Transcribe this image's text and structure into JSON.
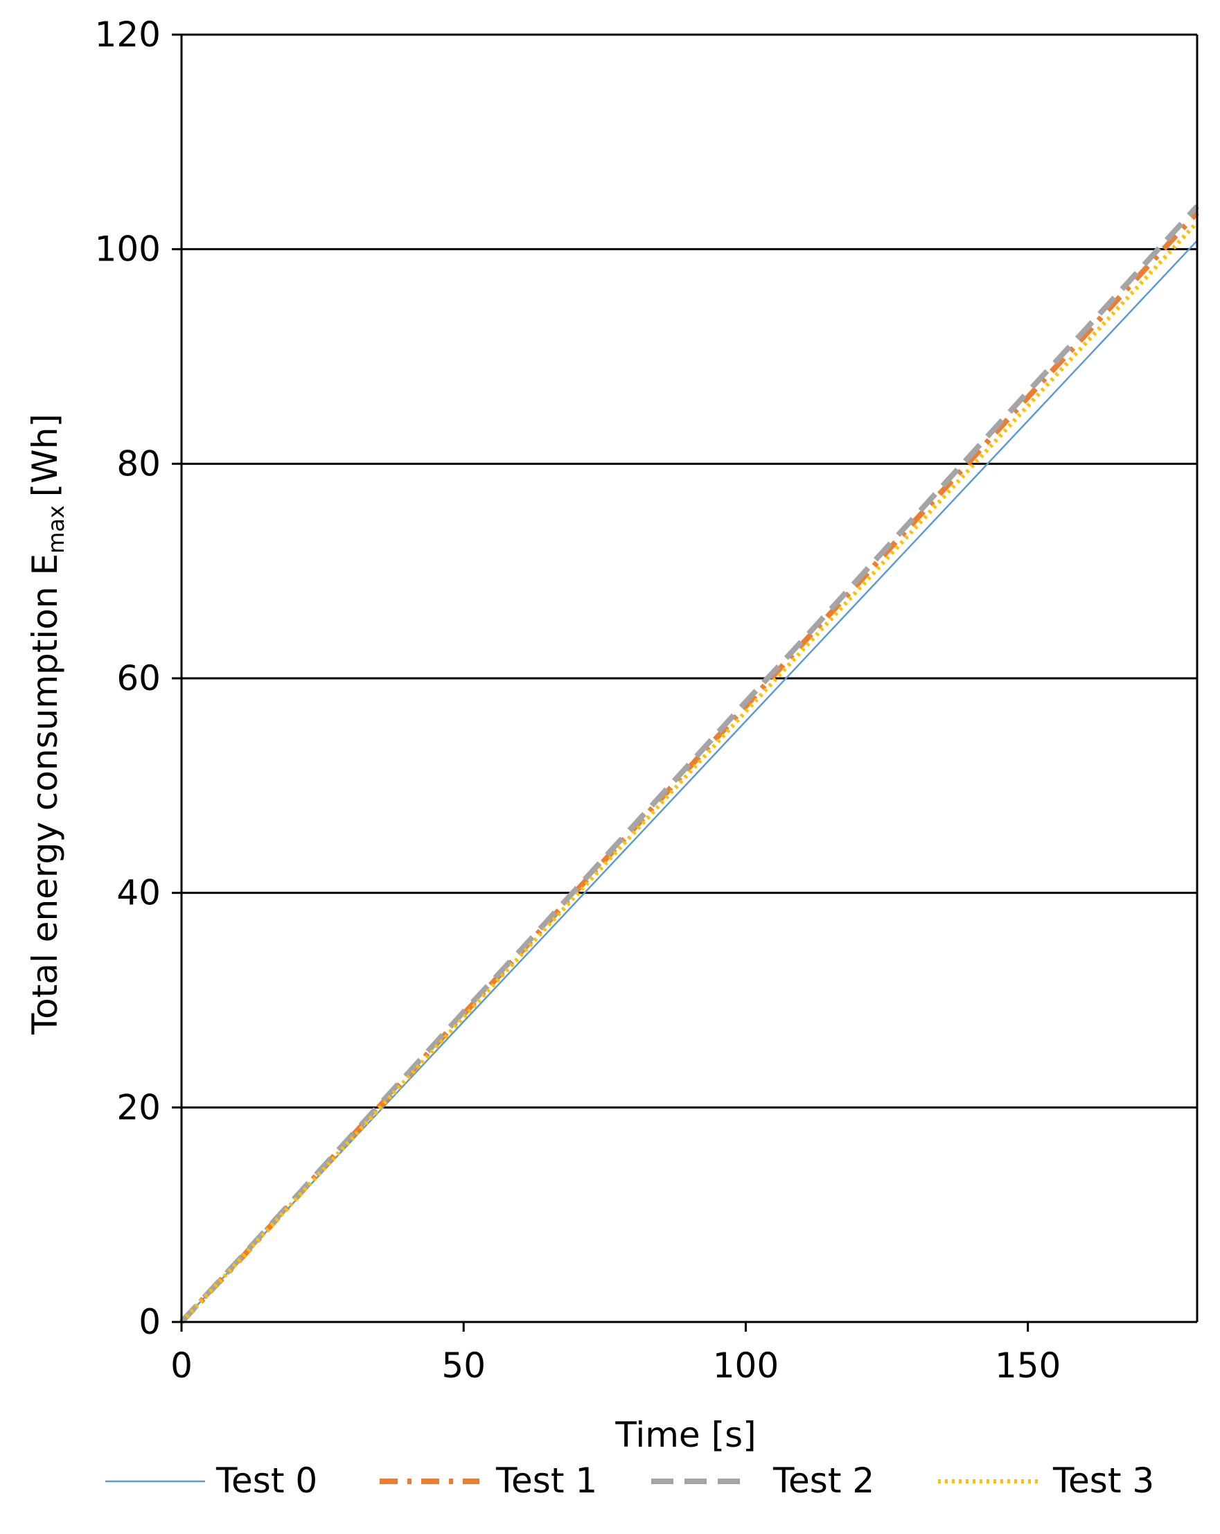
{
  "chart_data": {
    "type": "line",
    "title": "",
    "xlabel": "Time [s]",
    "ylabel_main": "Total energy consumption E",
    "ylabel_sub": "max",
    "ylabel_unit": "[Wh]",
    "xlim": [
      0,
      180
    ],
    "ylim": [
      0,
      120
    ],
    "xticks": [
      0,
      50,
      100,
      150
    ],
    "yticks": [
      0,
      20,
      40,
      60,
      80,
      100,
      120
    ],
    "grid": "horizontal",
    "legend_position": "bottom",
    "series": [
      {
        "name": "Test 0",
        "color": "#5B9BD5",
        "style": "solid",
        "x": [
          0,
          10,
          20,
          30,
          40,
          50,
          60,
          70,
          80,
          90,
          100,
          110,
          120,
          130,
          140,
          150,
          160,
          170,
          180
        ],
        "y": [
          0,
          5.6,
          11.2,
          16.8,
          22.4,
          28.0,
          33.6,
          39.2,
          44.8,
          50.4,
          56.0,
          61.6,
          67.2,
          72.8,
          78.4,
          84.0,
          89.6,
          95.2,
          100.8
        ]
      },
      {
        "name": "Test 1",
        "color": "#ED7D31",
        "style": "dashdot",
        "x": [
          0,
          10,
          20,
          30,
          40,
          50,
          60,
          70,
          80,
          90,
          100,
          110,
          120,
          130,
          140,
          150,
          160,
          170,
          180
        ],
        "y": [
          0,
          5.6,
          11.4,
          17.2,
          22.9,
          28.7,
          34.4,
          40.2,
          45.9,
          51.7,
          57.4,
          63.2,
          68.9,
          74.7,
          80.4,
          86.2,
          91.9,
          97.7,
          103.4
        ]
      },
      {
        "name": "Test 2",
        "color": "#A5A5A5",
        "style": "dashed",
        "x": [
          0,
          10,
          20,
          30,
          40,
          50,
          60,
          70,
          80,
          90,
          100,
          110,
          120,
          130,
          140,
          150,
          160,
          170,
          180
        ],
        "y": [
          0,
          5.7,
          11.5,
          17.3,
          23.1,
          28.9,
          34.6,
          40.4,
          46.2,
          52.0,
          57.8,
          63.5,
          69.3,
          75.1,
          80.9,
          86.7,
          92.4,
          98.2,
          104.0
        ]
      },
      {
        "name": "Test 3",
        "color": "#FFC000",
        "style": "dotted",
        "x": [
          0,
          10,
          20,
          30,
          40,
          50,
          60,
          70,
          80,
          90,
          100,
          110,
          120,
          130,
          140,
          150,
          160,
          170,
          180
        ],
        "y": [
          0,
          5.6,
          11.3,
          17.0,
          22.7,
          28.4,
          34.1,
          39.8,
          45.5,
          51.2,
          56.9,
          62.6,
          68.3,
          74.0,
          79.7,
          85.4,
          91.1,
          96.8,
          102.5
        ]
      }
    ]
  }
}
